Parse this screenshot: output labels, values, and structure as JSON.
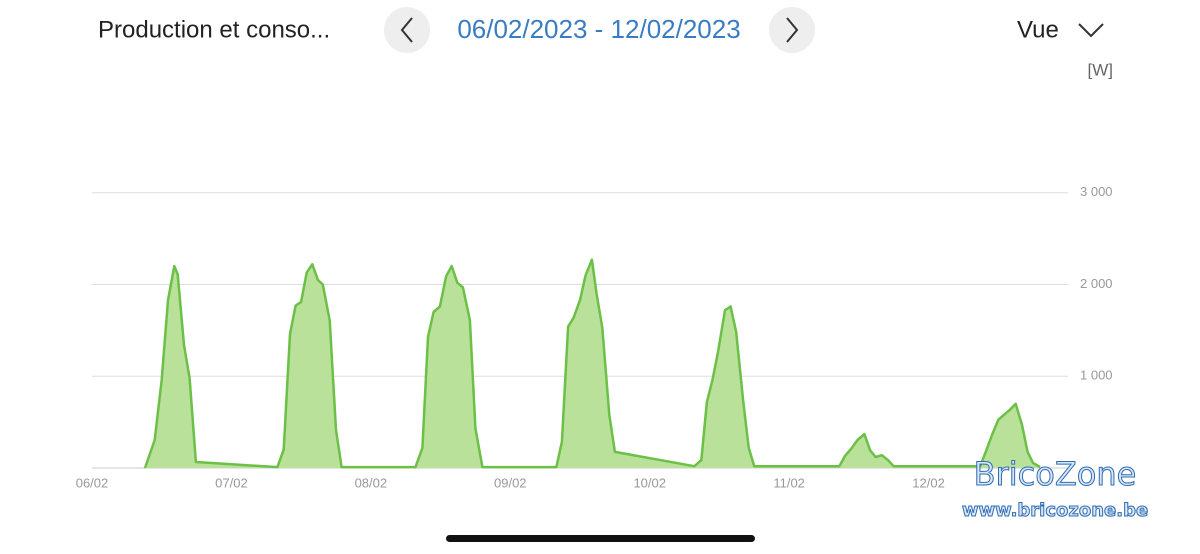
{
  "header": {
    "title": "Production et conso...",
    "date_range": "06/02/2023 - 12/02/2023",
    "view": "Vue"
  },
  "watermark": {
    "name": "BricoZone",
    "url": "www.bricozone.be"
  },
  "chart_data": {
    "type": "area",
    "y_label": "[W]",
    "color": "#6cbf47",
    "fill": "#b9e19a",
    "grid": true,
    "xlim": [
      0,
      7
    ],
    "ylim": [
      0,
      4000
    ],
    "xticks": [
      {
        "value": 0,
        "label": "06/02"
      },
      {
        "value": 1,
        "label": "07/02"
      },
      {
        "value": 2,
        "label": "08/02"
      },
      {
        "value": 3,
        "label": "09/02"
      },
      {
        "value": 4,
        "label": "10/02"
      },
      {
        "value": 5,
        "label": "11/02"
      },
      {
        "value": 6,
        "label": "12/02"
      }
    ],
    "yticks": [
      {
        "value": 1000,
        "label": "1 000"
      },
      {
        "value": 2000,
        "label": "2 000"
      },
      {
        "value": 3000,
        "label": "3 000"
      }
    ],
    "x": [
      0.38,
      0.45,
      0.5,
      0.545,
      0.59,
      0.615,
      0.66,
      0.7,
      0.745,
      1.33,
      1.375,
      1.42,
      1.46,
      1.5,
      1.54,
      1.58,
      1.62,
      1.655,
      1.705,
      1.75,
      1.79,
      2.32,
      2.37,
      2.41,
      2.45,
      2.495,
      2.54,
      2.58,
      2.62,
      2.66,
      2.71,
      2.75,
      2.8,
      3.33,
      3.37,
      3.415,
      3.455,
      3.5,
      3.54,
      3.585,
      3.62,
      3.66,
      3.71,
      3.75,
      4.32,
      4.37,
      4.41,
      4.45,
      4.49,
      4.54,
      4.58,
      4.62,
      4.67,
      4.71,
      4.75,
      5.36,
      5.4,
      5.45,
      5.49,
      5.54,
      5.58,
      5.62,
      5.665,
      5.71,
      5.75,
      6.37,
      6.41,
      6.455,
      6.5,
      6.54,
      6.58,
      6.625,
      6.67,
      6.71,
      6.75,
      6.8
    ],
    "values": [
      0,
      305,
      960,
      1830,
      2200,
      2110,
      1340,
      980,
      65,
      10,
      200,
      1460,
      1770,
      1810,
      2130,
      2220,
      2050,
      2000,
      1610,
      415,
      10,
      10,
      220,
      1430,
      1700,
      1760,
      2090,
      2200,
      2020,
      1970,
      1610,
      435,
      10,
      10,
      285,
      1540,
      1640,
      1830,
      2100,
      2270,
      1890,
      1530,
      580,
      175,
      20,
      85,
      720,
      960,
      1265,
      1720,
      1760,
      1480,
      740,
      220,
      20,
      20,
      130,
      220,
      305,
      370,
      195,
      120,
      140,
      85,
      20,
      20,
      175,
      360,
      525,
      580,
      630,
      700,
      470,
      175,
      55,
      10
    ]
  }
}
